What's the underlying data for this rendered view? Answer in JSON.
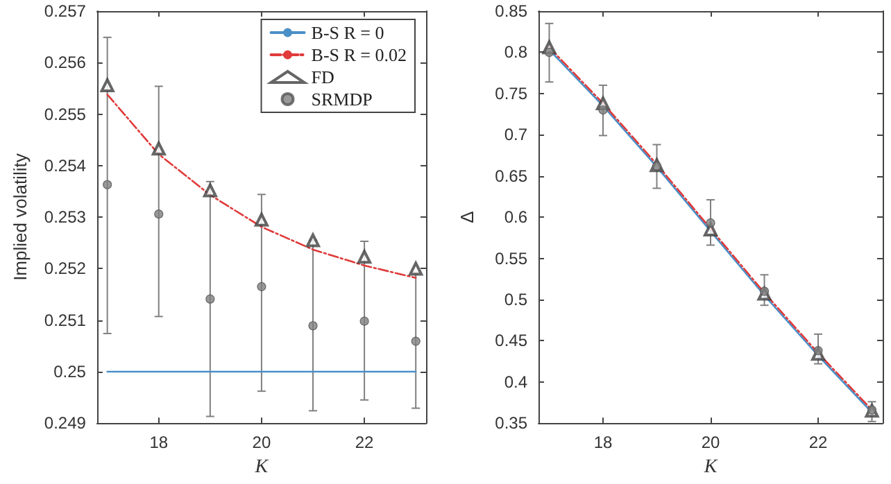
{
  "chart_data": [
    {
      "type": "line",
      "xlabel": "K",
      "ylabel": "Implied volatility",
      "xlim": [
        16.8,
        23.2
      ],
      "xticks": [
        18,
        20,
        22
      ],
      "ylim": [
        0.249,
        0.257
      ],
      "yticks": [
        0.249,
        0.25,
        0.251,
        0.252,
        0.253,
        0.254,
        0.255,
        0.256,
        0.257
      ],
      "grid": false,
      "legend": "top right",
      "series": [
        {
          "name": "B-S R = 0",
          "color": "#4a90c8",
          "line_style": "solid",
          "marker": "none",
          "x": [
            17,
            23
          ],
          "values": [
            0.25,
            0.25
          ]
        },
        {
          "name": "B-S R = 0.02",
          "color": "#e03a3a",
          "line_style": "dashed",
          "marker": "none",
          "x": [
            17,
            18,
            19,
            20,
            21,
            22,
            23
          ],
          "values": [
            0.25538,
            0.25422,
            0.25343,
            0.25281,
            0.25237,
            0.25206,
            0.25182
          ]
        },
        {
          "name": "FD",
          "type": "scatter",
          "color": "#404040",
          "marker": "triangle",
          "x": [
            17,
            18,
            19,
            20,
            21,
            22,
            23
          ],
          "values": [
            0.25556,
            0.25433,
            0.25352,
            0.25295,
            0.25255,
            0.25223,
            0.252
          ]
        },
        {
          "name": "SRMDP",
          "type": "scatter",
          "color": "#808080",
          "marker": "circle",
          "x": [
            17,
            18,
            19,
            20,
            21,
            22,
            23
          ],
          "values": [
            0.25363,
            0.25306,
            0.25141,
            0.25165,
            0.25089,
            0.25098,
            0.25059
          ],
          "errors": [
            [
              0.25074,
              0.25649
            ],
            [
              0.25107,
              0.25554
            ],
            [
              0.24913,
              0.25369
            ],
            [
              0.24962,
              0.25344
            ],
            [
              0.24924,
              0.25255
            ],
            [
              0.24945,
              0.25253
            ],
            [
              0.24929,
              0.25193
            ]
          ]
        }
      ]
    },
    {
      "type": "line",
      "xlabel": "K",
      "ylabel": "Δ",
      "xlim": [
        16.8,
        23.2
      ],
      "xticks": [
        18,
        20,
        22
      ],
      "ylim": [
        0.35,
        0.85
      ],
      "yticks": [
        0.35,
        0.4,
        0.45,
        0.5,
        0.55,
        0.6,
        0.65,
        0.7,
        0.75,
        0.8,
        0.85
      ],
      "grid": false,
      "legend": false,
      "series": [
        {
          "color": "#4a90c8",
          "line_style": "solid",
          "marker": "none",
          "x": [
            17,
            18,
            19,
            20,
            21,
            22,
            23
          ],
          "values": [
            0.803,
            0.735,
            0.661,
            0.583,
            0.505,
            0.432,
            0.363
          ]
        },
        {
          "color": "#e03a3a",
          "line_style": "dashed",
          "marker": "none",
          "x": [
            17,
            18,
            19,
            20,
            21,
            22,
            23
          ],
          "values": [
            0.806,
            0.738,
            0.664,
            0.586,
            0.508,
            0.435,
            0.366
          ]
        },
        {
          "type": "scatter",
          "color": "#404040",
          "marker": "triangle",
          "x": [
            17,
            18,
            19,
            20,
            21,
            22,
            23
          ],
          "values": [
            0.806,
            0.738,
            0.663,
            0.585,
            0.507,
            0.434,
            0.365
          ]
        },
        {
          "type": "scatter",
          "color": "#808080",
          "marker": "circle",
          "x": [
            17,
            18,
            19,
            20,
            21,
            22,
            23
          ],
          "values": [
            0.8,
            0.73,
            0.662,
            0.593,
            0.51,
            0.438,
            0.366
          ],
          "errors": [
            [
              0.764,
              0.835
            ],
            [
              0.699,
              0.76
            ],
            [
              0.635,
              0.688
            ],
            [
              0.566,
              0.621
            ],
            [
              0.493,
              0.53
            ],
            [
              0.422,
              0.458
            ],
            [
              0.352,
              0.376
            ]
          ]
        }
      ]
    }
  ]
}
